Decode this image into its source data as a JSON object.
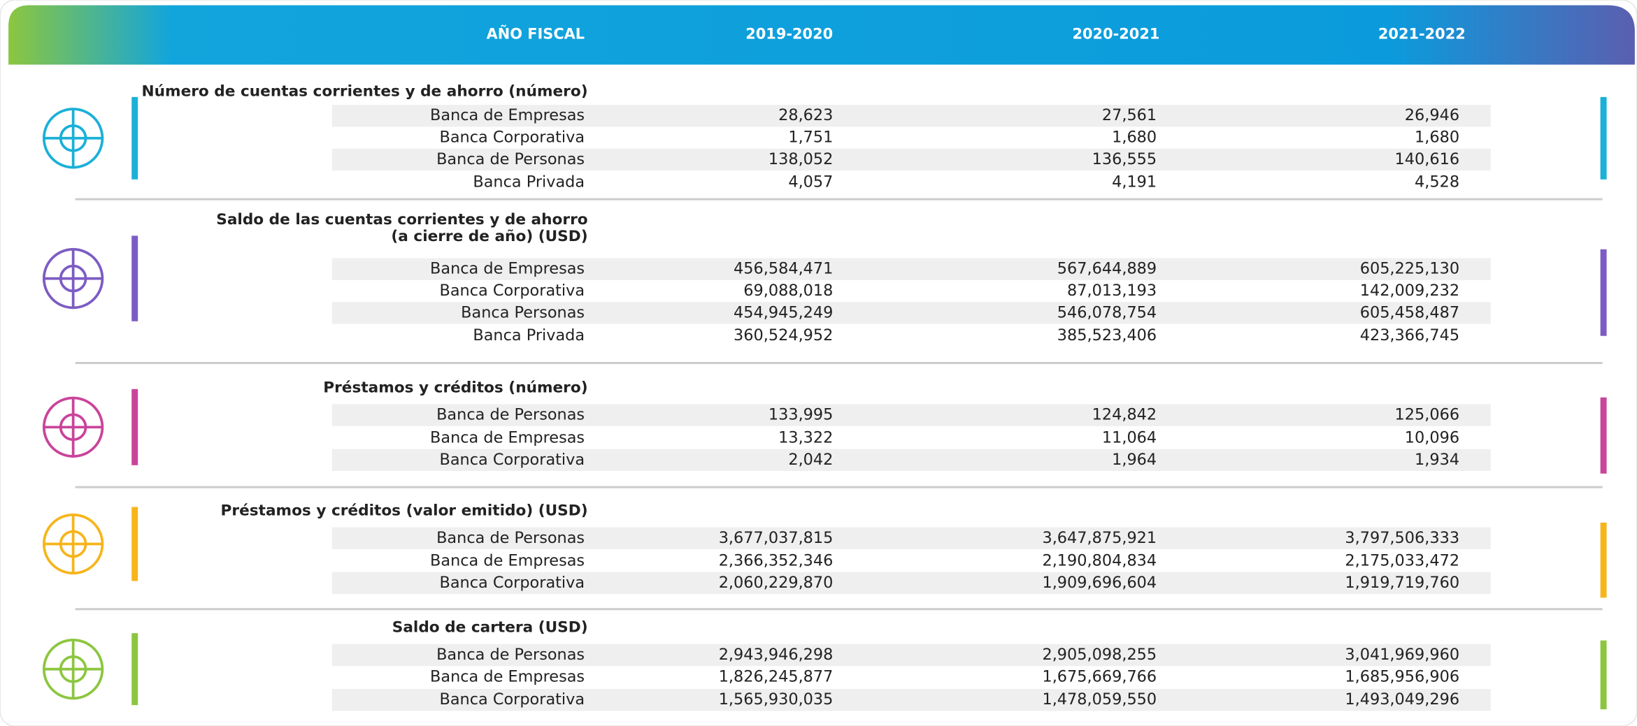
{
  "header": {
    "label": "AÑO FISCAL",
    "years": [
      "2019-2020",
      "2020-2021",
      "2021-2022"
    ]
  },
  "sections": [
    {
      "title": [
        "Número de cuentas corrientes y de ahorro (número)"
      ],
      "rows": [
        {
          "label": "Banca de Empresas",
          "values": [
            "28,623",
            "27,561",
            "26,946"
          ]
        },
        {
          "label": "Banca Corporativa",
          "values": [
            "1,751",
            "1,680",
            "1,680"
          ]
        },
        {
          "label": "Banca de Personas",
          "values": [
            "138,052",
            "136,555",
            "140,616"
          ]
        },
        {
          "label": "Banca Privada",
          "values": [
            "4,057",
            "4,191",
            "4,528"
          ]
        }
      ]
    },
    {
      "title": [
        "Saldo de las cuentas corrientes y de ahorro",
        "(a cierre de año) (USD)"
      ],
      "rows": [
        {
          "label": "Banca de Empresas",
          "values": [
            "456,584,471",
            "567,644,889",
            "605,225,130"
          ]
        },
        {
          "label": "Banca Corporativa",
          "values": [
            "69,088,018",
            "87,013,193",
            "142,009,232"
          ]
        },
        {
          "label": "Banca Personas",
          "values": [
            "454,945,249",
            "546,078,754",
            "605,458,487"
          ]
        },
        {
          "label": "Banca Privada",
          "values": [
            "360,524,952",
            "385,523,406",
            "423,366,745"
          ]
        }
      ]
    },
    {
      "title": [
        "Préstamos y créditos (número)"
      ],
      "rows": [
        {
          "label": "Banca de Personas",
          "values": [
            "133,995",
            "124,842",
            "125,066"
          ]
        },
        {
          "label": "Banca de Empresas",
          "values": [
            "13,322",
            "11,064",
            "10,096"
          ]
        },
        {
          "label": "Banca Corporativa",
          "values": [
            "2,042",
            "1,964",
            "1,934"
          ]
        }
      ]
    },
    {
      "title": [
        "Préstamos y créditos (valor emitido) (USD)"
      ],
      "rows": [
        {
          "label": "Banca de Personas",
          "values": [
            "3,677,037,815",
            "3,647,875,921",
            "3,797,506,333"
          ]
        },
        {
          "label": "Banca de Empresas",
          "values": [
            "2,366,352,346",
            "2,190,804,834",
            "2,175,033,472"
          ]
        },
        {
          "label": "Banca Corporativa",
          "values": [
            "2,060,229,870",
            "1,909,696,604",
            "1,919,719,760"
          ]
        }
      ]
    },
    {
      "title": [
        "Saldo de cartera (USD)"
      ],
      "rows": [
        {
          "label": "Banca de Personas",
          "values": [
            "2,943,946,298",
            "2,905,098,255",
            "3,041,969,960"
          ]
        },
        {
          "label": "Banca de Empresas",
          "values": [
            "1,826,245,877",
            "1,675,669,766",
            "1,685,956,906"
          ]
        },
        {
          "label": "Banca Corporativa",
          "values": [
            "1,565,930,035",
            "1,478,059,550",
            "1,493,049,296"
          ]
        }
      ]
    }
  ]
}
